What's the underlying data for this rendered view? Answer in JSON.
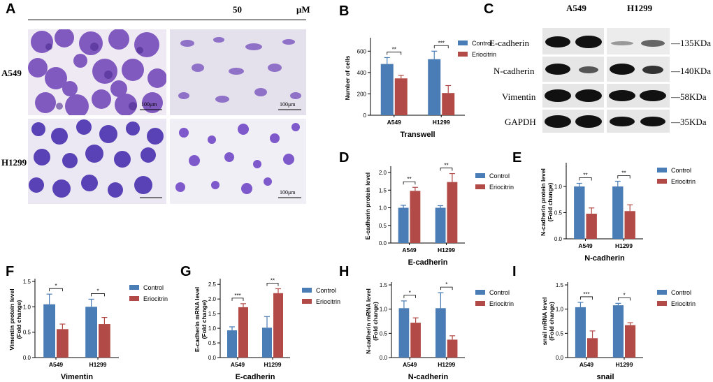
{
  "panelA": {
    "label": "A",
    "concentration": "50",
    "unit": "μM",
    "rows": [
      "A549",
      "H1299"
    ],
    "scale_bar": "100μm"
  },
  "panelC": {
    "label": "C",
    "columns": [
      "A549",
      "H1299"
    ],
    "bands": [
      {
        "name": "E-cadherin",
        "size": "135KDa"
      },
      {
        "name": "N-cadherin",
        "size": "140KDa"
      },
      {
        "name": "Vimentin",
        "size": "58KDa"
      },
      {
        "name": "GAPDH",
        "size": "35KDa"
      }
    ]
  },
  "colors": {
    "control": "#4a7db5",
    "treat": "#b24b47"
  },
  "chart_data": [
    {
      "id": "B",
      "type": "bar",
      "title": "Transwell",
      "xlabel": "Transwell",
      "ylabel": "Number of cells",
      "ylabel2": "",
      "categories": [
        "A549",
        "H1299"
      ],
      "ylim": [
        0,
        700
      ],
      "yticks": [
        0,
        200,
        400,
        600
      ],
      "series": [
        {
          "name": "Control",
          "values": [
            480,
            525
          ],
          "errors": [
            60,
            75
          ]
        },
        {
          "name": "Eriocitrin",
          "values": [
            345,
            208
          ],
          "errors": [
            28,
            70
          ]
        }
      ],
      "significance": [
        "**",
        "***"
      ]
    },
    {
      "id": "D",
      "type": "bar",
      "title": "E-cadherin",
      "xlabel": "E-cadherin",
      "ylabel": "E-cadherin protein level",
      "ylabel2": "",
      "categories": [
        "A549",
        "H1299"
      ],
      "ylim": [
        0,
        2.1
      ],
      "yticks": [
        0.0,
        0.5,
        1.0,
        1.5,
        2.0
      ],
      "series": [
        {
          "name": "Control",
          "values": [
            1.0,
            1.0
          ],
          "errors": [
            0.07,
            0.06
          ]
        },
        {
          "name": "Eriocitrin",
          "values": [
            1.48,
            1.73
          ],
          "errors": [
            0.1,
            0.24
          ]
        }
      ],
      "significance": [
        "**",
        "**"
      ]
    },
    {
      "id": "E",
      "type": "bar",
      "title": "N-cadherin",
      "xlabel": "N-cadherin",
      "ylabel": "N-cadherin protein level",
      "ylabel2": "(Fold change)",
      "categories": [
        "A549",
        "H1299"
      ],
      "ylim": [
        0,
        1.4
      ],
      "yticks": [
        0.0,
        0.5,
        1.0
      ],
      "series": [
        {
          "name": "Control",
          "values": [
            1.0,
            1.0
          ],
          "errors": [
            0.06,
            0.1
          ]
        },
        {
          "name": "Eriocitrin",
          "values": [
            0.48,
            0.53
          ],
          "errors": [
            0.11,
            0.12
          ]
        }
      ],
      "significance": [
        "**",
        "**"
      ]
    },
    {
      "id": "F",
      "type": "bar",
      "title": "Vimentin",
      "xlabel": "Vimentin",
      "ylabel": "Vimentin protein level",
      "ylabel2": "(Fold change)",
      "categories": [
        "A549",
        "H1299"
      ],
      "ylim": [
        0,
        1.5
      ],
      "yticks": [
        0.0,
        0.5,
        1.0,
        1.5
      ],
      "series": [
        {
          "name": "Control",
          "values": [
            1.05,
            1.0
          ],
          "errors": [
            0.2,
            0.15
          ]
        },
        {
          "name": "Eriocitrin",
          "values": [
            0.56,
            0.66
          ],
          "errors": [
            0.1,
            0.13
          ]
        }
      ],
      "significance": [
        "*",
        "*"
      ]
    },
    {
      "id": "G",
      "type": "bar",
      "title": "E-cadherin",
      "xlabel": "E-cadherin",
      "ylabel": "E-cadherin mRNA level",
      "ylabel2": "(Fold change)",
      "categories": [
        "A549",
        "H1299"
      ],
      "ylim": [
        0,
        2.6
      ],
      "yticks": [
        0.0,
        0.5,
        1.0,
        1.5,
        2.0,
        2.5
      ],
      "series": [
        {
          "name": "Control",
          "values": [
            0.93,
            1.02
          ],
          "errors": [
            0.12,
            0.38
          ]
        },
        {
          "name": "Eriocitrin",
          "values": [
            1.72,
            2.2
          ],
          "errors": [
            0.12,
            0.15
          ]
        }
      ],
      "significance": [
        "***",
        "**"
      ]
    },
    {
      "id": "H",
      "type": "bar",
      "title": "N-cadherin",
      "xlabel": "N-cadherin",
      "ylabel": "N-cadherin mRNA level",
      "ylabel2": "(Fold change)",
      "categories": [
        "A549",
        "H1299"
      ],
      "ylim": [
        0,
        1.5
      ],
      "yticks": [
        0.0,
        0.5,
        1.0,
        1.5
      ],
      "series": [
        {
          "name": "Control",
          "values": [
            1.02,
            1.02
          ],
          "errors": [
            0.15,
            0.32
          ]
        },
        {
          "name": "Eriocitrin",
          "values": [
            0.72,
            0.37
          ],
          "errors": [
            0.1,
            0.08
          ]
        }
      ],
      "significance": [
        "*",
        "*"
      ]
    },
    {
      "id": "I",
      "type": "bar",
      "title": "snail",
      "xlabel": "snail",
      "ylabel": "snail mRNA level",
      "ylabel2": "(Fold change)",
      "categories": [
        "A549",
        "H1299"
      ],
      "ylim": [
        0,
        1.5
      ],
      "yticks": [
        0.0,
        0.5,
        1.0,
        1.5
      ],
      "series": [
        {
          "name": "Control",
          "values": [
            1.04,
            1.08
          ],
          "errors": [
            0.1,
            0.04
          ]
        },
        {
          "name": "Eriocitrin",
          "values": [
            0.4,
            0.67
          ],
          "errors": [
            0.15,
            0.05
          ]
        }
      ],
      "significance": [
        "***",
        "*"
      ]
    }
  ]
}
